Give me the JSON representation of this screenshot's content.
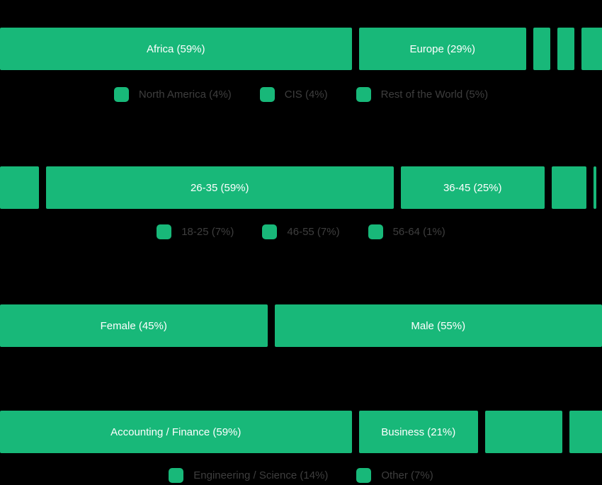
{
  "theme": {
    "background": "#000000",
    "bar_color": "#18b879",
    "bar_label_color": "#ffffff",
    "legend_text_color": "#3e3e3e"
  },
  "chart_data": [
    {
      "id": "region",
      "type": "bar",
      "subtype": "horizontal-percentage-distribution",
      "unit": "%",
      "categories": [
        "Africa",
        "Europe",
        "North America",
        "CIS",
        "Rest of the World"
      ],
      "values": [
        59,
        29,
        4,
        4,
        5
      ],
      "inline_labels": [
        "Africa (59%)",
        "Europe (29%)",
        "",
        "",
        ""
      ],
      "legend": [
        "North America (4%)",
        "CIS (4%)",
        "Rest of the World (5%)"
      ],
      "legend_position": "bottom-center"
    },
    {
      "id": "age",
      "type": "bar",
      "subtype": "horizontal-percentage-distribution",
      "unit": "%",
      "categories": [
        "18-25",
        "26-35",
        "36-45",
        "46-55",
        "56-64"
      ],
      "values": [
        7,
        59,
        25,
        7,
        1
      ],
      "inline_labels": [
        "",
        "26-35 (59%)",
        "36-45 (25%)",
        "",
        ""
      ],
      "legend": [
        "18-25 (7%)",
        "46-55 (7%)",
        "56-64 (1%)"
      ],
      "legend_position": "bottom-center"
    },
    {
      "id": "gender",
      "type": "bar",
      "subtype": "horizontal-percentage-distribution",
      "unit": "%",
      "categories": [
        "Female",
        "Male"
      ],
      "values": [
        45,
        55
      ],
      "inline_labels": [
        "Female (45%)",
        "Male (55%)"
      ],
      "legend": [],
      "legend_position": "none"
    },
    {
      "id": "field_of_study",
      "type": "bar",
      "subtype": "horizontal-percentage-distribution",
      "unit": "%",
      "categories": [
        "Accounting / Finance",
        "Business",
        "Engineering / Science",
        "Other"
      ],
      "values": [
        59,
        21,
        14,
        7
      ],
      "inline_labels": [
        "Accounting / Finance (59%)",
        "Business (21%)",
        "",
        ""
      ],
      "legend": [
        "Engineering / Science (14%)",
        "Other (7%)"
      ],
      "legend_position": "bottom-center"
    }
  ]
}
